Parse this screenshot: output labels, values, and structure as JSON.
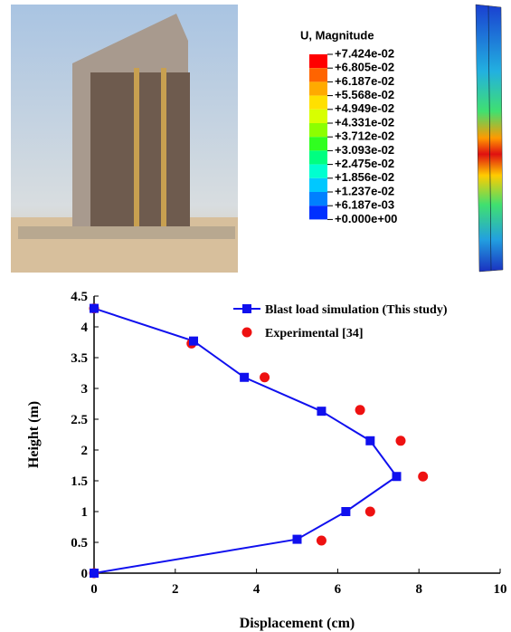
{
  "contour_legend": {
    "title": "U, Magnitude",
    "labels": [
      "+7.424e-02",
      "+6.805e-02",
      "+6.187e-02",
      "+5.568e-02",
      "+4.949e-02",
      "+4.331e-02",
      "+3.712e-02",
      "+3.093e-02",
      "+2.475e-02",
      "+1.856e-02",
      "+1.237e-02",
      "+6.187e-03",
      "+0.000e+00"
    ],
    "colors": [
      "#ff0000",
      "#ff6400",
      "#ffaa00",
      "#ffe000",
      "#d8ff00",
      "#8cff00",
      "#30ff20",
      "#00ff80",
      "#00ffd0",
      "#00c8ff",
      "#0080ff",
      "#0030ff"
    ]
  },
  "chart_data": {
    "type": "line",
    "x_label": "Displacement (cm)",
    "y_label": "Height (m)",
    "series": [
      {
        "name": "Blast load simulation (This study)",
        "color": "#1010ee",
        "marker": "square",
        "line": true,
        "x": [
          0,
          2.45,
          3.7,
          5.6,
          6.8,
          7.45,
          6.2,
          5.0,
          0
        ],
        "values": [
          4.3,
          3.77,
          3.18,
          2.63,
          2.15,
          1.57,
          1.0,
          0.55,
          0
        ]
      },
      {
        "name": "Experimental [34]",
        "color": "#ee1111",
        "marker": "circle",
        "line": false,
        "x": [
          0,
          2.4,
          4.2,
          6.55,
          7.55,
          8.1,
          6.8,
          5.6,
          0
        ],
        "values": [
          4.3,
          3.73,
          3.18,
          2.65,
          2.15,
          1.57,
          1.0,
          0.53,
          0
        ]
      }
    ],
    "xlim": [
      0,
      10
    ],
    "xticks": [
      0,
      2,
      4,
      6,
      8,
      10
    ],
    "ylim": [
      0,
      4.5
    ],
    "yticks": [
      0,
      0.5,
      1,
      1.5,
      2,
      2.5,
      3,
      3.5,
      4,
      4.5
    ]
  }
}
